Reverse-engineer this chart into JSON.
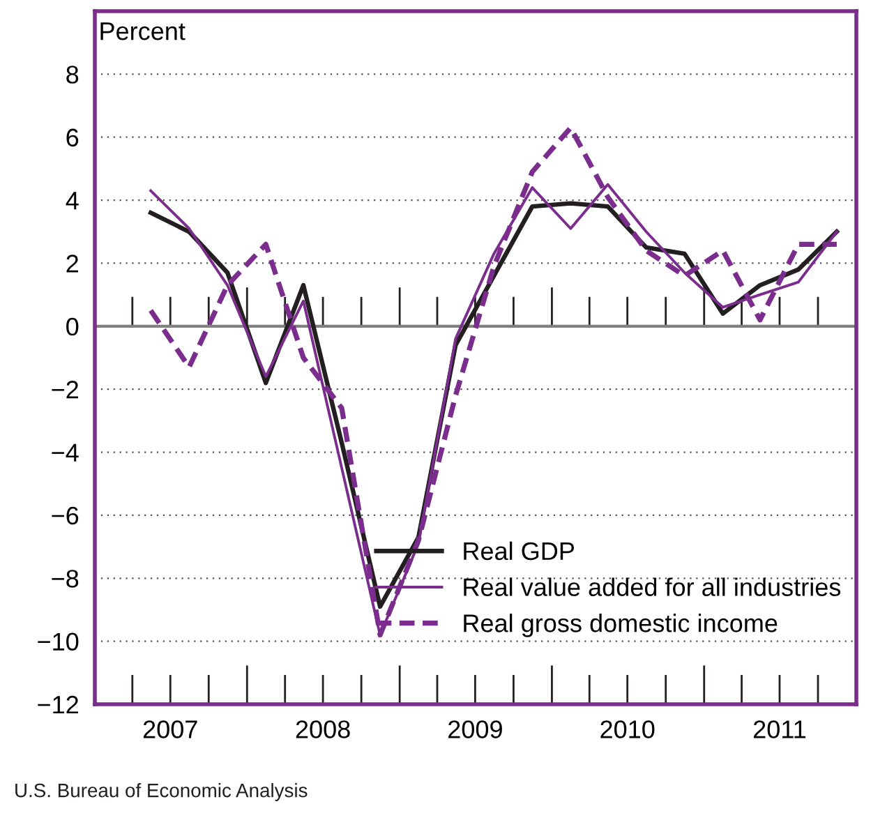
{
  "chart_data": {
    "type": "line",
    "ylabel": "Percent",
    "x": [
      "2007-05-15",
      "2007-08-15",
      "2007-11-15",
      "2008-02-15",
      "2008-05-15",
      "2008-08-15",
      "2008-11-15",
      "2009-02-15",
      "2009-05-15",
      "2009-08-15",
      "2009-11-15",
      "2010-02-15",
      "2010-05-15",
      "2010-08-15",
      "2010-11-15",
      "2011-02-15",
      "2011-05-15",
      "2011-08-15",
      "2011-11-15"
    ],
    "series": [
      {
        "name": "Real GDP",
        "color": "#231f20",
        "line_style": "solid",
        "values": [
          3.6,
          3.0,
          1.7,
          -1.8,
          1.3,
          -3.7,
          -8.9,
          -6.7,
          -0.6,
          1.6,
          3.8,
          3.9,
          3.8,
          2.5,
          2.3,
          0.4,
          1.3,
          1.8,
          3.0
        ]
      },
      {
        "name": "Real value added for all industries",
        "color": "#7b2d8e",
        "line_style": "solid",
        "values": [
          4.3,
          3.1,
          1.3,
          -1.6,
          0.8,
          -4.5,
          -9.8,
          -6.9,
          -0.4,
          2.3,
          4.4,
          3.1,
          4.5,
          3.0,
          1.7,
          0.6,
          1.0,
          1.4,
          3.0
        ]
      },
      {
        "name": "Real gross domestic income",
        "color": "#7b2d8e",
        "line_style": "dashed",
        "values": [
          0.5,
          -1.3,
          1.3,
          2.6,
          -1.0,
          -2.6,
          -9.8,
          -6.8,
          -2.2,
          1.9,
          4.9,
          6.3,
          4.1,
          2.4,
          1.6,
          2.4,
          0.2,
          2.6,
          2.6
        ]
      }
    ],
    "xlim": [
      "2007-01-01",
      "2012-01-01"
    ],
    "xticks": [
      {
        "value": "2007-07-01",
        "label": "2007"
      },
      {
        "value": "2008-07-01",
        "label": "2008"
      },
      {
        "value": "2009-07-01",
        "label": "2009"
      },
      {
        "value": "2010-07-01",
        "label": "2010"
      },
      {
        "value": "2011-07-01",
        "label": "2011"
      }
    ],
    "ylim": [
      -12,
      10
    ],
    "yticks": [
      {
        "value": -12,
        "label": "−12"
      },
      {
        "value": -10,
        "label": "−10"
      },
      {
        "value": -8,
        "label": "−8"
      },
      {
        "value": -6,
        "label": "−6"
      },
      {
        "value": -4,
        "label": "−4"
      },
      {
        "value": -2,
        "label": "−2"
      },
      0,
      2,
      4,
      6,
      8
    ],
    "ref_lines": [
      {
        "axis": "y",
        "value": 0,
        "color": "#808080"
      }
    ],
    "grid": "y",
    "legend": "bottom right",
    "marker": "none",
    "annotations": [
      "U.S. Bureau of Economic Analysis"
    ]
  }
}
